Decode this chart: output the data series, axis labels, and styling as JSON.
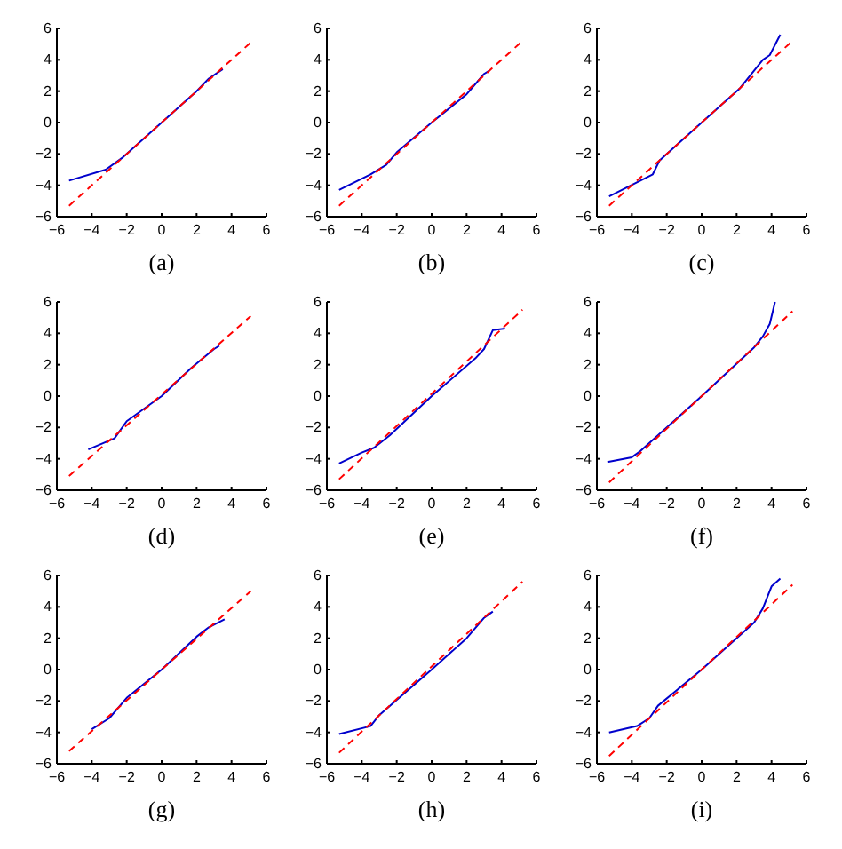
{
  "chart_data": [
    {
      "type": "line",
      "xlabel": "(a)",
      "xlim": [
        -6,
        6
      ],
      "ylim": [
        -6,
        6
      ],
      "xticks": [
        -6,
        -4,
        -2,
        0,
        2,
        4,
        6
      ],
      "yticks": [
        -6,
        -4,
        -2,
        0,
        2,
        4,
        6
      ],
      "series": [
        {
          "color": "#0000cc",
          "x": [
            -5.3,
            -3.2,
            -2.2,
            0,
            2,
            2.7,
            3.5
          ],
          "values": [
            -3.7,
            -3.0,
            -2.2,
            0,
            2,
            2.8,
            3.4
          ]
        },
        {
          "color": "#ff0000",
          "line_style": "dashed",
          "x": [
            -5.3,
            5.1
          ],
          "values": [
            -5.3,
            5.1
          ]
        }
      ]
    },
    {
      "type": "line",
      "xlabel": "(b)",
      "xlim": [
        -6,
        6
      ],
      "ylim": [
        -6,
        6
      ],
      "xticks": [
        -6,
        -4,
        -2,
        0,
        2,
        4,
        6
      ],
      "yticks": [
        -6,
        -4,
        -2,
        0,
        2,
        4,
        6
      ],
      "series": [
        {
          "color": "#0000cc",
          "x": [
            -5.3,
            -3.5,
            -2.6,
            -2,
            0,
            2,
            3,
            3.3
          ],
          "values": [
            -4.3,
            -3.3,
            -2.7,
            -1.9,
            0,
            1.8,
            3.1,
            3.3
          ]
        },
        {
          "color": "#ff0000",
          "line_style": "dashed",
          "x": [
            -5.3,
            5.1
          ],
          "values": [
            -5.3,
            5.1
          ]
        }
      ]
    },
    {
      "type": "line",
      "xlabel": "(c)",
      "xlim": [
        -6,
        6
      ],
      "ylim": [
        -6,
        6
      ],
      "xticks": [
        -6,
        -4,
        -2,
        0,
        2,
        4,
        6
      ],
      "yticks": [
        -6,
        -4,
        -2,
        0,
        2,
        4,
        6
      ],
      "series": [
        {
          "color": "#0000cc",
          "x": [
            -5.3,
            -2.8,
            -2.4,
            0,
            2.2,
            3.5,
            3.9,
            4.5
          ],
          "values": [
            -4.7,
            -3.3,
            -2.4,
            0,
            2.2,
            4.0,
            4.3,
            5.6
          ]
        },
        {
          "color": "#ff0000",
          "line_style": "dashed",
          "x": [
            -5.3,
            5.1
          ],
          "values": [
            -5.3,
            5.1
          ]
        }
      ]
    },
    {
      "type": "line",
      "xlabel": "(d)",
      "xlim": [
        -6,
        6
      ],
      "ylim": [
        -6,
        6
      ],
      "xticks": [
        -6,
        -4,
        -2,
        0,
        2,
        4,
        6
      ],
      "yticks": [
        -6,
        -4,
        -2,
        0,
        2,
        4,
        6
      ],
      "series": [
        {
          "color": "#0000cc",
          "x": [
            -4.2,
            -2.7,
            -2,
            0,
            1.7,
            3,
            3.3
          ],
          "values": [
            -3.4,
            -2.7,
            -1.6,
            0,
            1.8,
            3.0,
            3.2
          ]
        },
        {
          "color": "#ff0000",
          "line_style": "dashed",
          "x": [
            -5.3,
            5.1
          ],
          "values": [
            -5.1,
            5.1
          ]
        }
      ]
    },
    {
      "type": "line",
      "xlabel": "(e)",
      "xlim": [
        -6,
        6
      ],
      "ylim": [
        -6,
        6
      ],
      "xticks": [
        -6,
        -4,
        -2,
        0,
        2,
        4,
        6
      ],
      "yticks": [
        -6,
        -4,
        -2,
        0,
        2,
        4,
        6
      ],
      "series": [
        {
          "color": "#0000cc",
          "x": [
            -5.3,
            -4,
            -3.3,
            -2.4,
            0,
            2.5,
            3,
            3.5,
            4.2
          ],
          "values": [
            -4.3,
            -3.6,
            -3.3,
            -2.5,
            0,
            2.4,
            3,
            4.2,
            4.3
          ]
        },
        {
          "color": "#ff0000",
          "line_style": "dashed",
          "x": [
            -5.3,
            5.2
          ],
          "values": [
            -5.3,
            5.5
          ]
        }
      ]
    },
    {
      "type": "line",
      "xlabel": "(f)",
      "xlim": [
        -6,
        6
      ],
      "ylim": [
        -6,
        6
      ],
      "xticks": [
        -6,
        -4,
        -2,
        0,
        2,
        4,
        6
      ],
      "yticks": [
        -6,
        -4,
        -2,
        0,
        2,
        4,
        6
      ],
      "series": [
        {
          "color": "#0000cc",
          "x": [
            -5.4,
            -4,
            -3.5,
            0,
            3,
            3.5,
            3.9,
            4.2
          ],
          "values": [
            -4.2,
            -3.9,
            -3.5,
            0,
            3.1,
            3.8,
            4.6,
            6.0
          ]
        },
        {
          "color": "#ff0000",
          "line_style": "dashed",
          "x": [
            -5.3,
            5.2
          ],
          "values": [
            -5.5,
            5.4
          ]
        }
      ]
    },
    {
      "type": "line",
      "xlabel": "(g)",
      "xlim": [
        -6,
        6
      ],
      "ylim": [
        -6,
        6
      ],
      "xticks": [
        -6,
        -4,
        -2,
        0,
        2,
        4,
        6
      ],
      "yticks": [
        -6,
        -4,
        -2,
        0,
        2,
        4,
        6
      ],
      "series": [
        {
          "color": "#0000cc",
          "x": [
            -4,
            -3,
            -2,
            0,
            2,
            2.7,
            3.6
          ],
          "values": [
            -3.8,
            -3.1,
            -1.8,
            0,
            2.1,
            2.7,
            3.2
          ]
        },
        {
          "color": "#ff0000",
          "line_style": "dashed",
          "x": [
            -5.3,
            5.1
          ],
          "values": [
            -5.2,
            5.0
          ]
        }
      ]
    },
    {
      "type": "line",
      "xlabel": "(h)",
      "xlim": [
        -6,
        6
      ],
      "ylim": [
        -6,
        6
      ],
      "xticks": [
        -6,
        -4,
        -2,
        0,
        2,
        4,
        6
      ],
      "yticks": [
        -6,
        -4,
        -2,
        0,
        2,
        4,
        6
      ],
      "series": [
        {
          "color": "#0000cc",
          "x": [
            -5.3,
            -3.5,
            -3,
            0,
            2,
            3,
            3.5
          ],
          "values": [
            -4.1,
            -3.6,
            -2.9,
            0,
            2,
            3.3,
            3.7
          ]
        },
        {
          "color": "#ff0000",
          "line_style": "dashed",
          "x": [
            -5.3,
            5.2
          ],
          "values": [
            -5.3,
            5.6
          ]
        }
      ]
    },
    {
      "type": "line",
      "xlabel": "(i)",
      "xlim": [
        -6,
        6
      ],
      "ylim": [
        -6,
        6
      ],
      "xticks": [
        -6,
        -4,
        -2,
        0,
        2,
        4,
        6
      ],
      "yticks": [
        -6,
        -4,
        -2,
        0,
        2,
        4,
        6
      ],
      "series": [
        {
          "color": "#0000cc",
          "x": [
            -5.3,
            -3.7,
            -3,
            -2.5,
            0,
            3,
            3.5,
            4,
            4.5
          ],
          "values": [
            -4.0,
            -3.6,
            -3.1,
            -2.3,
            0,
            3,
            3.9,
            5.3,
            5.8
          ]
        },
        {
          "color": "#ff0000",
          "line_style": "dashed",
          "x": [
            -5.3,
            5.2
          ],
          "values": [
            -5.5,
            5.4
          ]
        }
      ]
    }
  ]
}
